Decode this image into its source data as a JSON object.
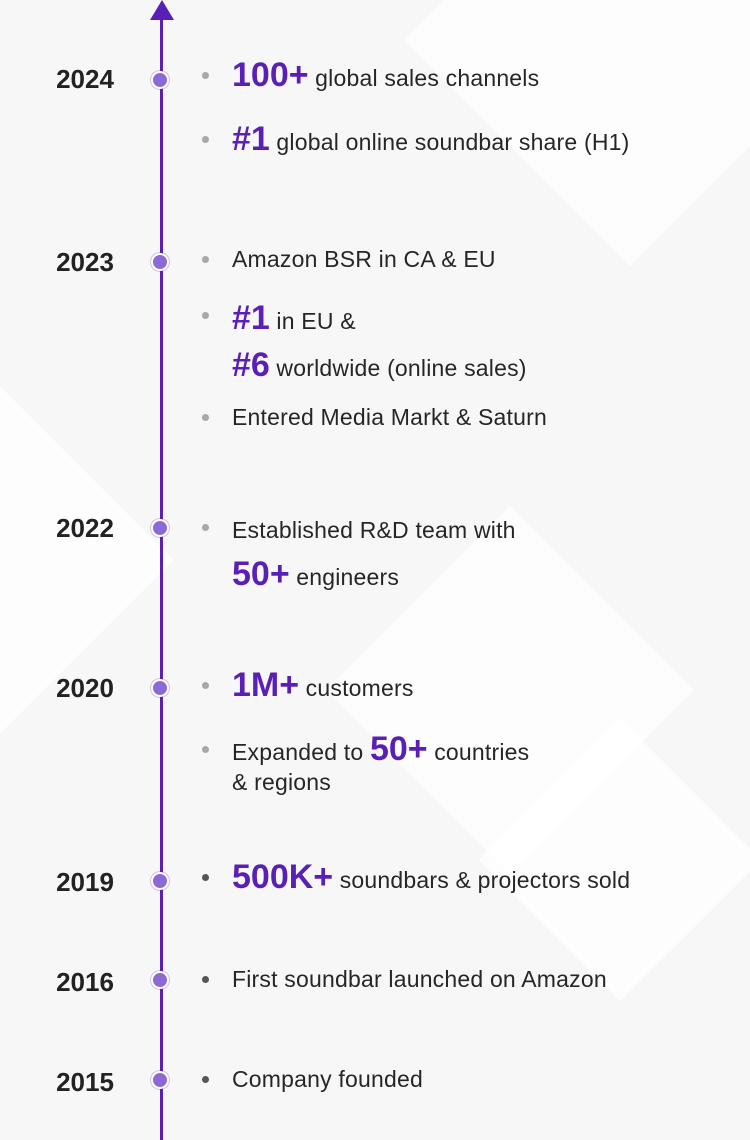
{
  "years": [
    "2024",
    "2023",
    "2022",
    "2020",
    "2019",
    "2016",
    "2015"
  ],
  "items": {
    "y2024_a": {
      "highlight": "100+",
      "text": " global sales channels"
    },
    "y2024_b": {
      "highlight": "#1",
      "text": " global online soundbar share (H1)"
    },
    "y2023_a": {
      "text": "Amazon BSR in CA & EU"
    },
    "y2023_b": {
      "highlight1": "#1",
      "text1": " in EU &",
      "highlight2": "#6",
      "text2": " worldwide (online sales)"
    },
    "y2023_c": {
      "text": "Entered Media Markt & Saturn"
    },
    "y2022_a": {
      "text": "Established R&D team with",
      "highlight": "50+",
      "text2": " engineers"
    },
    "y2020_a": {
      "highlight": "1M+",
      "text": " customers"
    },
    "y2020_b": {
      "text1": "Expanded to ",
      "highlight": "50+",
      "text2": " countries",
      "text3": "& regions"
    },
    "y2019_a": {
      "highlight": "500K+",
      "text": " soundbars & projectors sold"
    },
    "y2016_a": {
      "text": "First soundbar launched on Amazon"
    },
    "y2015_a": {
      "text": "Company founded"
    }
  },
  "colors": {
    "accent": "#5a1fb5",
    "dot": "#8c6ad6"
  }
}
